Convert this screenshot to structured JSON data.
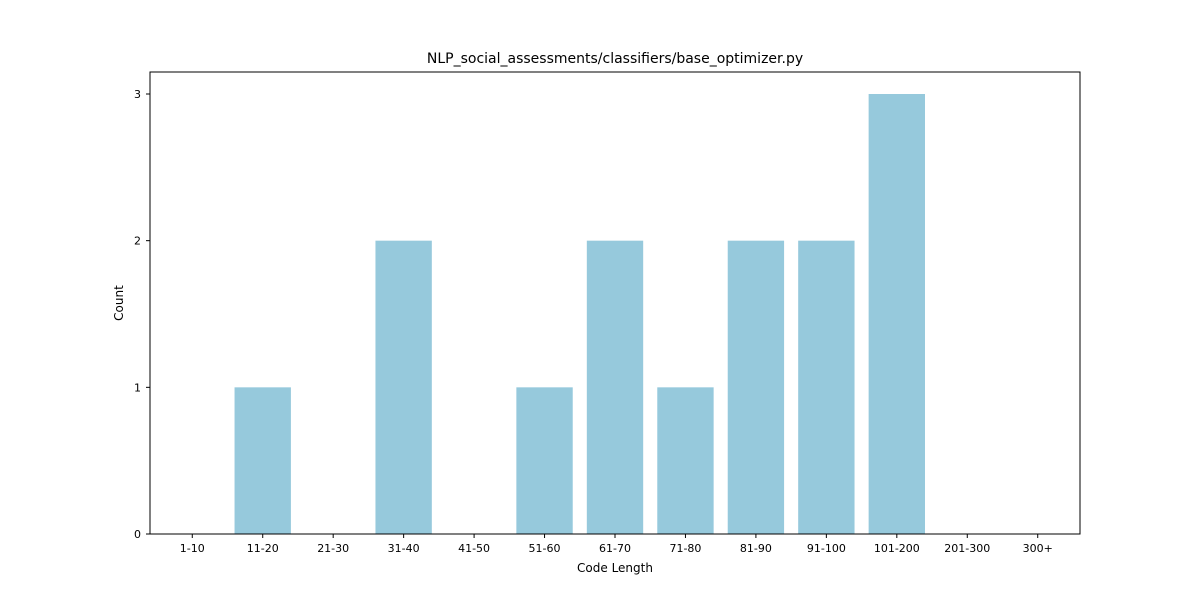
{
  "chart_data": {
    "type": "bar",
    "title": "NLP_social_assessments/classifiers/base_optimizer.py",
    "xlabel": "Code Length",
    "ylabel": "Count",
    "categories": [
      "1-10",
      "11-20",
      "21-30",
      "31-40",
      "41-50",
      "51-60",
      "61-70",
      "71-80",
      "81-90",
      "91-100",
      "101-200",
      "201-300",
      "300+"
    ],
    "values": [
      0,
      1,
      0,
      2,
      0,
      1,
      2,
      1,
      2,
      2,
      3,
      0,
      0
    ],
    "ylim": [
      0,
      3.15
    ],
    "yticks": [
      0,
      1,
      2,
      3
    ],
    "bar_color": "#96c9dc",
    "grid": false,
    "legend": "none"
  }
}
